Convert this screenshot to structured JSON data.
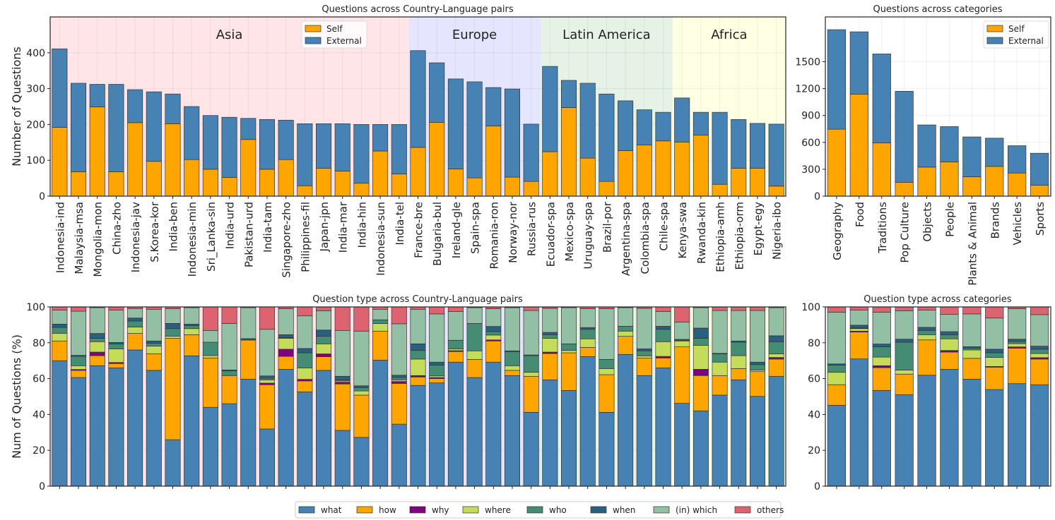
{
  "colors": {
    "self": "#ffa500",
    "external": "#4682b4",
    "types": [
      "#4682b4",
      "#ffa500",
      "#800080",
      "#c5dc5a",
      "#458c74",
      "#2a5f80",
      "#93c0a4",
      "#de6370"
    ],
    "regions": {
      "Asia": "#ffe5e7",
      "Europe": "#e5e5ff",
      "Latin America": "#e6f2e6",
      "Africa": "#ffffe4"
    }
  },
  "legend_top": [
    "Self",
    "External"
  ],
  "question_types": [
    "what",
    "how",
    "why",
    "where",
    "who",
    "when",
    "(in) which",
    "others"
  ],
  "chart_data": [
    {
      "type": "bar",
      "stacked": true,
      "title": "Questions across Country-Language pairs",
      "ylabel": "Number of Questions",
      "ylim": [
        0,
        500
      ],
      "yticks": [
        0,
        100,
        200,
        300,
        400
      ],
      "grid": true,
      "legend": "top-center",
      "regions": [
        {
          "name": "Asia",
          "count": 19
        },
        {
          "name": "Europe",
          "count": 7
        },
        {
          "name": "Latin America",
          "count": 7
        },
        {
          "name": "Africa",
          "count": 6
        }
      ],
      "categories": [
        "Indonesia-ind",
        "Malaysia-msa",
        "Mongolia-mon",
        "China-zho",
        "Indonesia-jav",
        "S.Korea-kor",
        "India-ben",
        "Indonesia-min",
        "Sri_Lanka-sin",
        "India-urd",
        "Pakistan-urd",
        "India-tam",
        "Singapore-zho",
        "Philippines-fil",
        "Japan-jpn",
        "India-mar",
        "India-hin",
        "Indonesia-sun",
        "India-tel",
        "France-bre",
        "Bulgaria-bul",
        "Ireland-gle",
        "Spain-spa",
        "Romania-ron",
        "Norway-nor",
        "Russia-rus",
        "Ecuador-spa",
        "Mexico-spa",
        "Uruguay-spa",
        "Brazil-por",
        "Argentina-spa",
        "Colombia-spa",
        "Chile-spa",
        "Kenya-swa",
        "Rwanda-kin",
        "Ethiopia-amh",
        "Ethiopia-orm",
        "Egypt-egy",
        "Nigeria-ibo"
      ],
      "series": [
        {
          "name": "Self",
          "values": [
            192,
            68,
            249,
            68,
            205,
            97,
            202,
            102,
            75,
            52,
            158,
            75,
            102,
            29,
            78,
            70,
            36,
            126,
            62,
            136,
            206,
            76,
            51,
            196,
            53,
            41,
            124,
            247,
            106,
            41,
            127,
            143,
            154,
            151,
            170,
            33,
            78,
            78,
            28
          ]
        },
        {
          "name": "External",
          "values": [
            219,
            247,
            63,
            244,
            92,
            194,
            83,
            148,
            150,
            168,
            59,
            139,
            110,
            173,
            124,
            132,
            164,
            74,
            138,
            270,
            166,
            251,
            268,
            107,
            246,
            160,
            238,
            76,
            209,
            244,
            139,
            98,
            80,
            123,
            64,
            201,
            136,
            125,
            173
          ]
        }
      ]
    },
    {
      "type": "bar",
      "stacked": true,
      "title": "Questions across categories",
      "ylim": [
        0,
        2000
      ],
      "yticks": [
        0,
        300,
        600,
        900,
        1200,
        1500
      ],
      "grid": true,
      "legend": "top-right",
      "categories": [
        "Geography",
        "Food",
        "Traditions",
        "Pop Culture",
        "Objects",
        "People",
        "Plants & Animal",
        "Brands",
        "Vehicles",
        "Sports"
      ],
      "series": [
        {
          "name": "Self",
          "values": [
            747,
            1139,
            595,
            155,
            324,
            382,
            216,
            332,
            258,
            121
          ]
        },
        {
          "name": "External",
          "values": [
            1111,
            695,
            992,
            1016,
            471,
            394,
            445,
            315,
            305,
            358
          ]
        }
      ]
    },
    {
      "type": "bar",
      "stacked": true,
      "title": "Question type across Country-Language pairs",
      "ylabel": "Num of Questions (%)",
      "ylim": [
        0,
        100
      ],
      "yticks": [
        0,
        20,
        40,
        60,
        80,
        100
      ],
      "grid": true,
      "legend": "bottom",
      "categories_ref": "same as Country-Language pairs",
      "values": [
        [
          70,
          11,
          0,
          4.3,
          3.3,
          1.8,
          7.9,
          1.7
        ],
        [
          60.6,
          4,
          0.5,
          2.1,
          5.2,
          0.6,
          24.6,
          2.4
        ],
        [
          67.2,
          5.6,
          2,
          5.8,
          1.9,
          2.7,
          14.4,
          0.4
        ],
        [
          66,
          2.4,
          0.6,
          7.6,
          2.7,
          0.9,
          18.1,
          1.7
        ],
        [
          76,
          9.2,
          0,
          3.6,
          3.3,
          1.7,
          5.3,
          0.9
        ],
        [
          64.6,
          9.3,
          0,
          4.2,
          1.6,
          1.3,
          17.7,
          1.3
        ],
        [
          25.9,
          56.6,
          0,
          1.1,
          4.3,
          2.9,
          8.2,
          1
        ],
        [
          72.7,
          11.8,
          0,
          3.4,
          1.6,
          0.9,
          9.2,
          0.4
        ],
        [
          44,
          27.5,
          0,
          1.3,
          7.5,
          0,
          6.6,
          13.1
        ],
        [
          46,
          15.7,
          0,
          0,
          2.6,
          0.5,
          26,
          9.2
        ],
        [
          59.7,
          21.8,
          0,
          0,
          0,
          0.8,
          17.3,
          0.4
        ],
        [
          31.9,
          24.7,
          0.9,
          1.8,
          0.9,
          1.3,
          26,
          12.5
        ],
        [
          65.2,
          7.2,
          4,
          6.1,
          0.4,
          1.6,
          14.5,
          1
        ],
        [
          52.6,
          6.1,
          0.9,
          6.3,
          8.5,
          2.4,
          18.2,
          5
        ],
        [
          64.6,
          7.6,
          1.6,
          5.6,
          4.2,
          3.5,
          10.8,
          2.1
        ],
        [
          31.1,
          25.9,
          1,
          0.7,
          0.6,
          2,
          25.6,
          13.1
        ],
        [
          27.2,
          23.6,
          0,
          2.3,
          1.9,
          1,
          30.5,
          13.5
        ],
        [
          70.3,
          16.2,
          0,
          4.2,
          2.1,
          0,
          5.9,
          1.3
        ],
        [
          34.6,
          22.7,
          1.1,
          0.9,
          1.3,
          1.3,
          28.7,
          9.4
        ],
        [
          56.2,
          4.7,
          0.8,
          9.2,
          4.8,
          3.7,
          19.3,
          1.3
        ],
        [
          57.6,
          2.4,
          0.6,
          0.9,
          6,
          1.7,
          26.9,
          3.9
        ],
        [
          69.2,
          5.9,
          0.5,
          1,
          4.8,
          0,
          16,
          2.6
        ],
        [
          60.6,
          10.1,
          0,
          4.8,
          15.3,
          0,
          8.8,
          0.4
        ],
        [
          69.2,
          11.8,
          0.6,
          2.7,
          1.9,
          2.9,
          9.9,
          1
        ],
        [
          61.7,
          2.9,
          0,
          2.6,
          7.9,
          0.4,
          24.1,
          0.4
        ],
        [
          41.2,
          20.1,
          0,
          2.2,
          9.3,
          0.4,
          24.8,
          2
        ],
        [
          59.3,
          14.7,
          0.8,
          7.7,
          2,
          1.3,
          13.4,
          0.8
        ],
        [
          53.4,
          21,
          0,
          1.3,
          3.7,
          0,
          20.2,
          0.4
        ],
        [
          72.3,
          5.1,
          0,
          4.8,
          5.3,
          1,
          10.5,
          1
        ],
        [
          41.2,
          21,
          0,
          3.4,
          5.1,
          0,
          28.3,
          1
        ],
        [
          73.5,
          10.1,
          0,
          2.9,
          2.7,
          0,
          10.4,
          0.4
        ],
        [
          61.7,
          9.8,
          0,
          1.2,
          2.8,
          1.1,
          22.6,
          0.8
        ],
        [
          66,
          5.5,
          0.9,
          8.2,
          6.9,
          1.7,
          8.2,
          2.6
        ],
        [
          46.2,
          31.5,
          0,
          3.3,
          0.4,
          0.5,
          9.6,
          8.5
        ],
        [
          42,
          19.7,
          3.5,
          13.4,
          3.9,
          5.7,
          11.4,
          0.4
        ],
        [
          50.8,
          10.9,
          0,
          7.5,
          4.6,
          0.3,
          23.9,
          2
        ],
        [
          59.3,
          6.3,
          0,
          7.2,
          7.5,
          0.7,
          17,
          2
        ],
        [
          50.1,
          13.8,
          0,
          0.9,
          3,
          1.4,
          28.8,
          2
        ],
        [
          61.3,
          9.6,
          0.9,
          2,
          6.8,
          3.3,
          15.7,
          0.4
        ]
      ]
    },
    {
      "type": "bar",
      "stacked": true,
      "title": "Question type across categories",
      "ylim": [
        0,
        100
      ],
      "yticks": [
        0,
        20,
        40,
        60,
        80,
        100
      ],
      "grid": true,
      "categories_ref": "same as categories",
      "values": [
        [
          45.1,
          11.5,
          0,
          6.9,
          4,
          0.7,
          28.9,
          2.9
        ],
        [
          71,
          15,
          0.5,
          1.4,
          0.3,
          1.6,
          8.5,
          1.7
        ],
        [
          53.4,
          12.7,
          1.1,
          4.8,
          5.7,
          1.6,
          17.8,
          2.9
        ],
        [
          51,
          11.5,
          0,
          2.3,
          15.5,
          1.7,
          15.9,
          2.1
        ],
        [
          61.9,
          19.7,
          0,
          2.9,
          2.4,
          1.7,
          9.7,
          1.7
        ],
        [
          65.2,
          9.6,
          0.9,
          6.5,
          2.3,
          1.7,
          9.6,
          4.2
        ],
        [
          59.7,
          11.6,
          0,
          4.7,
          1,
          0.8,
          18.3,
          3.9
        ],
        [
          53.9,
          12.5,
          0.4,
          5,
          2.6,
          2,
          17.4,
          6.2
        ],
        [
          57.2,
          19.8,
          0.7,
          1.8,
          1.2,
          1.3,
          17,
          1
        ],
        [
          56.6,
          14.3,
          0.8,
          2.3,
          2.4,
          1.7,
          17.6,
          4.3
        ]
      ]
    }
  ]
}
